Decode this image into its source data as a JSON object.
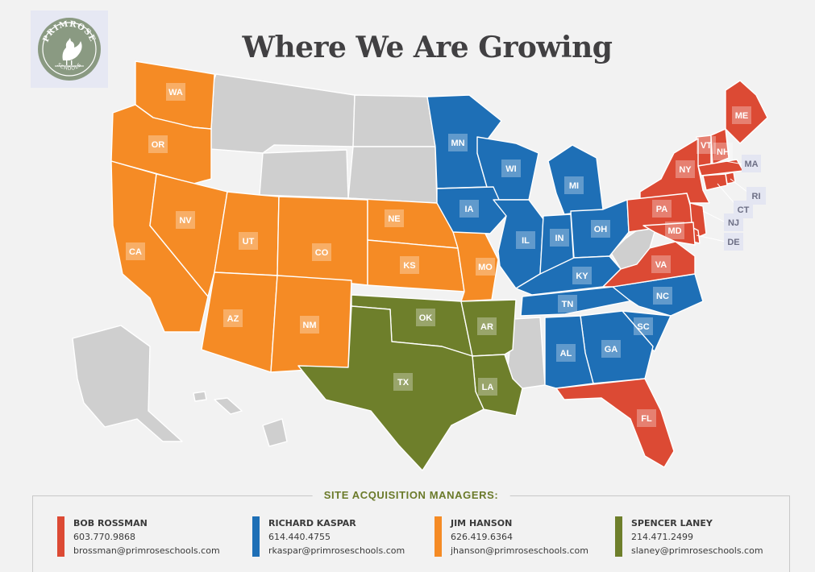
{
  "logo": {
    "wordmark": "PRIMROSE",
    "subtext": "SCHOOLS",
    "color": "#8a9a82",
    "icon": "rooster-icon"
  },
  "title": "Where We Are Growing",
  "colors": {
    "red": "#dc4a34",
    "blue": "#1e6fb6",
    "orange": "#f58b25",
    "green": "#6e7f2b",
    "gray": "#cfcfcf",
    "label_box": "rgba(255,255,255,0.3)",
    "callout_box": "#e4e6f2",
    "callout_text": "#6d6f85"
  },
  "states": [
    {
      "abbr": "WA",
      "region": "orange"
    },
    {
      "abbr": "OR",
      "region": "orange"
    },
    {
      "abbr": "CA",
      "region": "orange"
    },
    {
      "abbr": "NV",
      "region": "orange"
    },
    {
      "abbr": "UT",
      "region": "orange"
    },
    {
      "abbr": "AZ",
      "region": "orange"
    },
    {
      "abbr": "CO",
      "region": "orange"
    },
    {
      "abbr": "NM",
      "region": "orange"
    },
    {
      "abbr": "NE",
      "region": "orange"
    },
    {
      "abbr": "KS",
      "region": "orange"
    },
    {
      "abbr": "MO",
      "region": "orange"
    },
    {
      "abbr": "MN",
      "region": "blue"
    },
    {
      "abbr": "WI",
      "region": "blue"
    },
    {
      "abbr": "IA",
      "region": "blue"
    },
    {
      "abbr": "MI",
      "region": "blue"
    },
    {
      "abbr": "IL",
      "region": "blue"
    },
    {
      "abbr": "IN",
      "region": "blue"
    },
    {
      "abbr": "OH",
      "region": "blue"
    },
    {
      "abbr": "KY",
      "region": "blue"
    },
    {
      "abbr": "TN",
      "region": "blue"
    },
    {
      "abbr": "NC",
      "region": "blue"
    },
    {
      "abbr": "SC",
      "region": "blue"
    },
    {
      "abbr": "GA",
      "region": "blue"
    },
    {
      "abbr": "AL",
      "region": "blue"
    },
    {
      "abbr": "OK",
      "region": "green"
    },
    {
      "abbr": "AR",
      "region": "green"
    },
    {
      "abbr": "TX",
      "region": "green"
    },
    {
      "abbr": "LA",
      "region": "green"
    },
    {
      "abbr": "ME",
      "region": "red"
    },
    {
      "abbr": "VT",
      "region": "red"
    },
    {
      "abbr": "NH",
      "region": "red"
    },
    {
      "abbr": "NY",
      "region": "red"
    },
    {
      "abbr": "PA",
      "region": "red"
    },
    {
      "abbr": "MD",
      "region": "red"
    },
    {
      "abbr": "VA",
      "region": "red"
    },
    {
      "abbr": "FL",
      "region": "red"
    },
    {
      "abbr": "MA",
      "region": "red"
    },
    {
      "abbr": "RI",
      "region": "red"
    },
    {
      "abbr": "CT",
      "region": "red"
    },
    {
      "abbr": "NJ",
      "region": "red"
    },
    {
      "abbr": "DE",
      "region": "red"
    }
  ],
  "legend": {
    "heading": "SITE ACQUISITION MANAGERS:",
    "managers": [
      {
        "name": "BOB ROSSMAN",
        "phone": "603.770.9868",
        "email": "brossman@primroseschools.com",
        "color": "#dc4a34"
      },
      {
        "name": "RICHARD KASPAR",
        "phone": "614.440.4755",
        "email": "rkaspar@primroseschools.com",
        "color": "#1e6fb6"
      },
      {
        "name": "JIM HANSON",
        "phone": "626.419.6364",
        "email": "jhanson@primroseschools.com",
        "color": "#f58b25"
      },
      {
        "name": "SPENCER LANEY",
        "phone": "214.471.2499",
        "email": "slaney@primroseschools.com",
        "color": "#6e7f2b"
      }
    ]
  }
}
